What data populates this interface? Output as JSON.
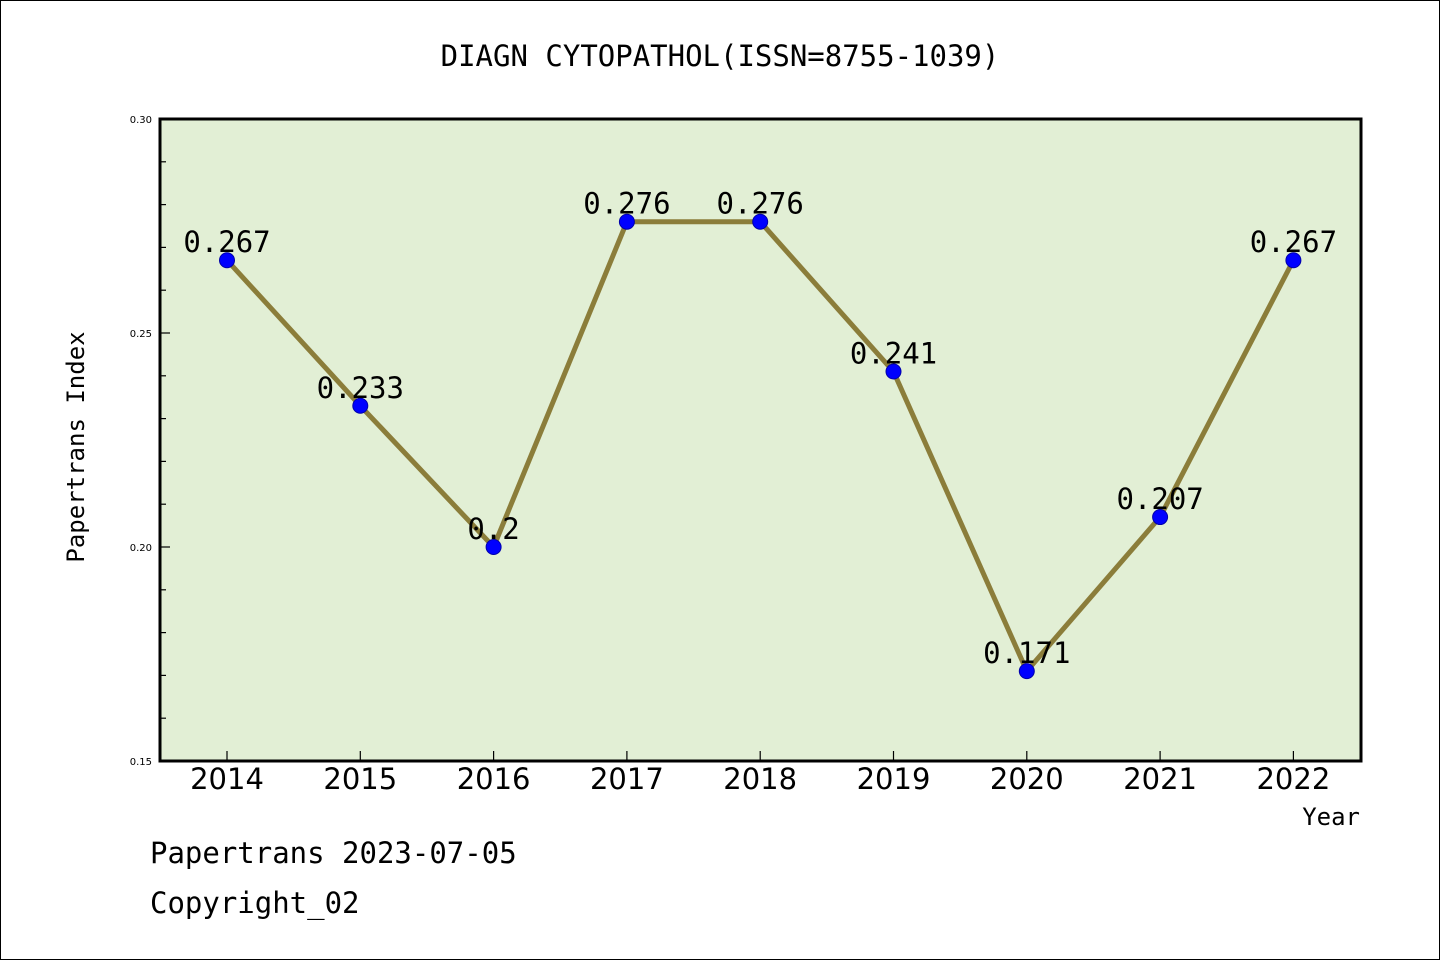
{
  "chart_data": {
    "type": "line",
    "title": "DIAGN CYTOPATHOL(ISSN=8755-1039)",
    "xlabel": "Year",
    "ylabel": "Papertrans Index",
    "x": [
      "2014",
      "2015",
      "2016",
      "2017",
      "2018",
      "2019",
      "2020",
      "2021",
      "2022"
    ],
    "values": [
      0.267,
      0.233,
      0.2,
      0.276,
      0.276,
      0.241,
      0.171,
      0.207,
      0.267
    ],
    "data_labels": [
      "0.267",
      "0.233",
      "0.2",
      "0.276",
      "0.276",
      "0.241",
      "0.171",
      "0.207",
      "0.267"
    ],
    "ylim": [
      0.15,
      0.3
    ],
    "yticks": [
      0.15,
      0.2,
      0.25,
      0.3
    ],
    "ytick_labels": [
      "0.15",
      "0.20",
      "0.25",
      "0.30"
    ],
    "grid": false,
    "line_color": "#8b7d3a",
    "marker_color": "#0000ff",
    "plot_background": "#e2efd5"
  },
  "footer": {
    "line1": "Papertrans 2023-07-05",
    "line2": "Copyright_02"
  }
}
